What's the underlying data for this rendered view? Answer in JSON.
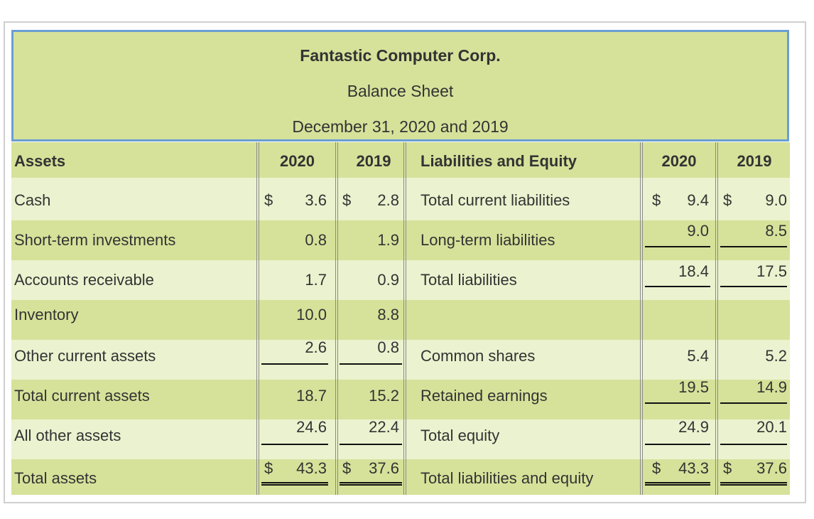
{
  "header": {
    "company": "Fantastic Computer Corp.",
    "statement": "Balance Sheet",
    "dates": "December 31, 2020 and 2019"
  },
  "columns": {
    "assets": "Assets",
    "a2020": "2020",
    "a2019": "2019",
    "liabilities": "Liabilities and Equity",
    "l2020": "2020",
    "l2019": "2019"
  },
  "rows": [
    {
      "asset": "Cash",
      "a2020_sym": "$",
      "a2020": "3.6",
      "a2019_sym": "$",
      "a2019": "2.8",
      "liab": "Total current liabilities",
      "l2020_sym": "$",
      "l2020": "9.4",
      "l2019_sym": "$",
      "l2019": "9.0"
    },
    {
      "asset": "Short-term investments",
      "a2020_sym": "",
      "a2020": "0.8",
      "a2019_sym": "",
      "a2019": "1.9",
      "liab": "Long-term liabilities",
      "l2020_sym": "",
      "l2020": "9.0",
      "l2019_sym": "",
      "l2019": "8.5"
    },
    {
      "asset": "Accounts receivable",
      "a2020_sym": "",
      "a2020": "1.7",
      "a2019_sym": "",
      "a2019": "0.9",
      "liab": "Total liabilities",
      "l2020_sym": "",
      "l2020": "18.4",
      "l2019_sym": "",
      "l2019": "17.5"
    },
    {
      "asset": "Inventory",
      "a2020_sym": "",
      "a2020": "10.0",
      "a2019_sym": "",
      "a2019": "8.8",
      "liab": "",
      "l2020_sym": "",
      "l2020": "",
      "l2019_sym": "",
      "l2019": ""
    },
    {
      "asset": "Other current assets",
      "a2020_sym": "",
      "a2020": "2.6",
      "a2019_sym": "",
      "a2019": "0.8",
      "liab": "Common shares",
      "l2020_sym": "",
      "l2020": "5.4",
      "l2019_sym": "",
      "l2019": "5.2"
    },
    {
      "asset": "Total current assets",
      "a2020_sym": "",
      "a2020": "18.7",
      "a2019_sym": "",
      "a2019": "15.2",
      "liab": "Retained earnings",
      "l2020_sym": "",
      "l2020": "19.5",
      "l2019_sym": "",
      "l2019": "14.9"
    },
    {
      "asset": "All other assets",
      "a2020_sym": "",
      "a2020": "24.6",
      "a2019_sym": "",
      "a2019": "22.4",
      "liab": "Total equity",
      "l2020_sym": "",
      "l2020": "24.9",
      "l2019_sym": "",
      "l2019": "20.1"
    },
    {
      "asset": "Total assets",
      "a2020_sym": "$",
      "a2020": "43.3",
      "a2019_sym": "$",
      "a2019": "37.6",
      "liab": "Total liabilities and equity",
      "l2020_sym": "$",
      "l2020": "43.3",
      "l2019_sym": "$",
      "l2019": "37.6"
    }
  ],
  "colors": {
    "header_bg": "#d6e29a",
    "header_border": "#6a9ed4",
    "row_dark": "#d6e29a",
    "row_light": "#eaf2cf"
  }
}
